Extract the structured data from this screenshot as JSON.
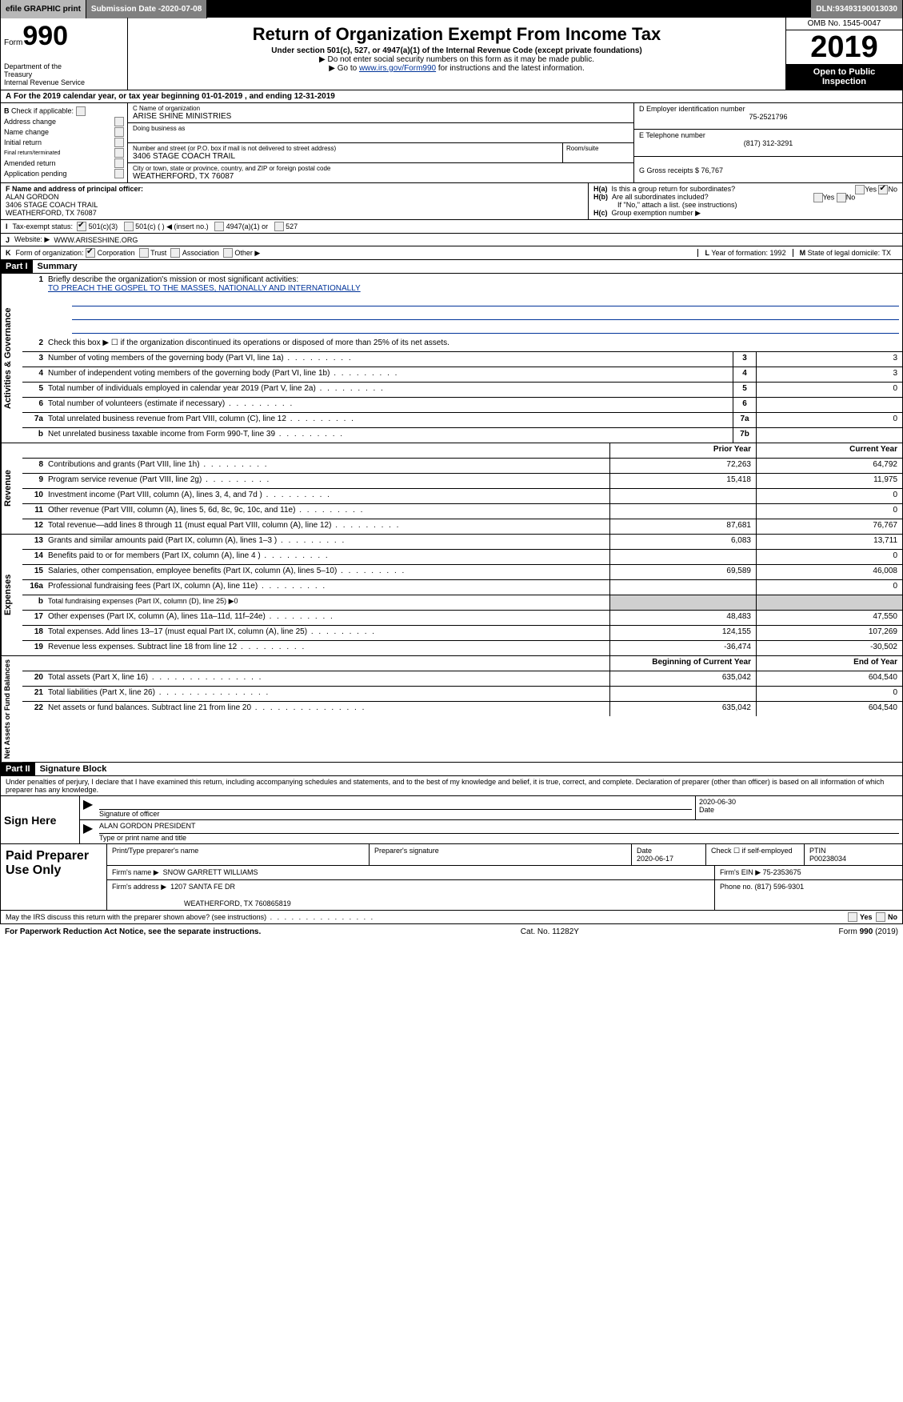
{
  "topbar": {
    "efile": "efile GRAPHIC print",
    "submission_label": "Submission Date - ",
    "submission_date": "2020-07-08",
    "dln_label": "DLN: ",
    "dln": "93493190013030"
  },
  "header": {
    "form_prefix": "Form",
    "form_number": "990",
    "dept1": "Department of the",
    "dept2": "Treasury",
    "dept3": "Internal Revenue Service",
    "title": "Return of Organization Exempt From Income Tax",
    "sub": "Under section 501(c), 527, or 4947(a)(1) of the Internal Revenue Code (except private foundations)",
    "line2_arrow": "▶ Do not enter social security numbers on this form as it may be made public.",
    "line3_pre": "▶ Go to ",
    "line3_link": "www.irs.gov/Form990",
    "line3_post": " for instructions and the latest information.",
    "omb": "OMB No. 1545-0047",
    "year": "2019",
    "open1": "Open to Public",
    "open2": "Inspection"
  },
  "lineA": {
    "a": "A",
    "text_pre": "For the 2019 calendar year, or tax year beginning ",
    "begin": "01-01-2019",
    "mid": ", and ending ",
    "end": "12-31-2019"
  },
  "colB": {
    "b": "B",
    "check_label": "Check if applicable:",
    "items": [
      "Address change",
      "Name change",
      "Initial return",
      "Final return/terminated",
      "Amended return",
      "Application pending"
    ]
  },
  "colC": {
    "name_label": "C Name of organization",
    "name": "ARISE SHINE MINISTRIES",
    "dba_label": "Doing business as",
    "dba": "",
    "street_label": "Number and street (or P.O. box if mail is not delivered to street address)",
    "street": "3406 STAGE COACH TRAIL",
    "room_label": "Room/suite",
    "city_label": "City or town, state or province, country, and ZIP or foreign postal code",
    "city": "WEATHERFORD, TX  76087"
  },
  "colD": {
    "d_label": "D Employer identification number",
    "ein": "75-2521796",
    "e_label": "E Telephone number",
    "phone": "(817) 312-3291",
    "g_label": "G Gross receipts $ ",
    "gross": "76,767"
  },
  "f": {
    "label": "F Name and address of principal officer:",
    "name": "ALAN GORDON",
    "street": "3406 STAGE COACH TRAIL",
    "city": "WEATHERFORD, TX  76087"
  },
  "h": {
    "ha": "H(a)",
    "ha_text": "Is this a group return for subordinates?",
    "hb": "H(b)",
    "hb_text": "Are all subordinates included?",
    "hb_note": "If \"No,\" attach a list. (see instructions)",
    "hc": "H(c)",
    "hc_text": "Group exemption number ▶",
    "yes": "Yes",
    "no": "No"
  },
  "i": {
    "lbl": "I",
    "text": "Tax-exempt status:",
    "opts": [
      "501(c)(3)",
      "501(c) (  ) ◀ (insert no.)",
      "4947(a)(1) or",
      "527"
    ]
  },
  "j": {
    "lbl": "J",
    "text": "Website: ▶",
    "val": "WWW.ARISESHINE.ORG"
  },
  "k": {
    "lbl": "K",
    "text": "Form of organization:",
    "opts": [
      "Corporation",
      "Trust",
      "Association",
      "Other ▶"
    ]
  },
  "l": {
    "lbl": "L",
    "text": "Year of formation: ",
    "val": "1992"
  },
  "m": {
    "lbl": "M",
    "text": "State of legal domicile: ",
    "val": "TX"
  },
  "part1": {
    "hdr": "Part I",
    "title": "Summary"
  },
  "mission": {
    "num": "1",
    "label": "Briefly describe the organization's mission or most significant activities:",
    "text": "TO PREACH THE GOSPEL TO THE MASSES, NATIONALLY AND INTERNATIONALLY"
  },
  "gov_side": "Activities & Governance",
  "rev_side": "Revenue",
  "exp_side": "Expenses",
  "net_side": "Net Assets or Fund Balances",
  "rows_gov": [
    {
      "n": "2",
      "d": "Check this box ▶ ☐ if the organization discontinued its operations or disposed of more than 25% of its net assets."
    },
    {
      "n": "3",
      "d": "Number of voting members of the governing body (Part VI, line 1a)",
      "box": "3",
      "v": "3"
    },
    {
      "n": "4",
      "d": "Number of independent voting members of the governing body (Part VI, line 1b)",
      "box": "4",
      "v": "3"
    },
    {
      "n": "5",
      "d": "Total number of individuals employed in calendar year 2019 (Part V, line 2a)",
      "box": "5",
      "v": "0"
    },
    {
      "n": "6",
      "d": "Total number of volunteers (estimate if necessary)",
      "box": "6",
      "v": ""
    },
    {
      "n": "7a",
      "d": "Total unrelated business revenue from Part VIII, column (C), line 12",
      "box": "7a",
      "v": "0"
    },
    {
      "n": "b",
      "d": "Net unrelated business taxable income from Form 990-T, line 39",
      "box": "7b",
      "v": ""
    }
  ],
  "col_prior": "Prior Year",
  "col_current": "Current Year",
  "rows_rev": [
    {
      "n": "8",
      "d": "Contributions and grants (Part VIII, line 1h)",
      "p": "72,263",
      "c": "64,792"
    },
    {
      "n": "9",
      "d": "Program service revenue (Part VIII, line 2g)",
      "p": "15,418",
      "c": "11,975"
    },
    {
      "n": "10",
      "d": "Investment income (Part VIII, column (A), lines 3, 4, and 7d )",
      "p": "",
      "c": "0"
    },
    {
      "n": "11",
      "d": "Other revenue (Part VIII, column (A), lines 5, 6d, 8c, 9c, 10c, and 11e)",
      "p": "",
      "c": "0"
    },
    {
      "n": "12",
      "d": "Total revenue—add lines 8 through 11 (must equal Part VIII, column (A), line 12)",
      "p": "87,681",
      "c": "76,767"
    }
  ],
  "rows_exp": [
    {
      "n": "13",
      "d": "Grants and similar amounts paid (Part IX, column (A), lines 1–3 )",
      "p": "6,083",
      "c": "13,711"
    },
    {
      "n": "14",
      "d": "Benefits paid to or for members (Part IX, column (A), line 4 )",
      "p": "",
      "c": "0"
    },
    {
      "n": "15",
      "d": "Salaries, other compensation, employee benefits (Part IX, column (A), lines 5–10)",
      "p": "69,589",
      "c": "46,008"
    },
    {
      "n": "16a",
      "d": "Professional fundraising fees (Part IX, column (A), line 11e)",
      "p": "",
      "c": "0"
    },
    {
      "n": "b",
      "d": "Total fundraising expenses (Part IX, column (D), line 25) ▶0",
      "shaded": true
    },
    {
      "n": "17",
      "d": "Other expenses (Part IX, column (A), lines 11a–11d, 11f–24e)",
      "p": "48,483",
      "c": "47,550"
    },
    {
      "n": "18",
      "d": "Total expenses. Add lines 13–17 (must equal Part IX, column (A), line 25)",
      "p": "124,155",
      "c": "107,269"
    },
    {
      "n": "19",
      "d": "Revenue less expenses. Subtract line 18 from line 12",
      "p": "-36,474",
      "c": "-30,502"
    }
  ],
  "col_begin": "Beginning of Current Year",
  "col_end": "End of Year",
  "rows_net": [
    {
      "n": "20",
      "d": "Total assets (Part X, line 16)",
      "p": "635,042",
      "c": "604,540"
    },
    {
      "n": "21",
      "d": "Total liabilities (Part X, line 26)",
      "p": "",
      "c": "0"
    },
    {
      "n": "22",
      "d": "Net assets or fund balances. Subtract line 21 from line 20",
      "p": "635,042",
      "c": "604,540"
    }
  ],
  "part2": {
    "hdr": "Part II",
    "title": "Signature Block"
  },
  "perjury": "Under penalties of perjury, I declare that I have examined this return, including accompanying schedules and statements, and to the best of my knowledge and belief, it is true, correct, and complete. Declaration of preparer (other than officer) is based on all information of which preparer has any knowledge.",
  "sign": {
    "here": "Sign Here",
    "sig_label": "Signature of officer",
    "date_label": "Date",
    "date": "2020-06-30",
    "name": "ALAN GORDON  PRESIDENT",
    "name_label": "Type or print name and title"
  },
  "prep": {
    "label": "Paid Preparer Use Only",
    "col1": "Print/Type preparer's name",
    "col2": "Preparer's signature",
    "col3": "Date",
    "date": "2020-06-17",
    "col4_pre": "Check ☐ if self-employed",
    "col5": "PTIN",
    "ptin": "P00238034",
    "firm_label": "Firm's name   ▶",
    "firm": "SNOW GARRETT WILLIAMS",
    "ein_label": "Firm's EIN ▶ ",
    "ein": "75-2353675",
    "addr_label": "Firm's address ▶",
    "addr1": "1207 SANTA FE DR",
    "addr2": "WEATHERFORD, TX  760865819",
    "phone_label": "Phone no. ",
    "phone": "(817) 596-9301"
  },
  "discuss": {
    "text": "May the IRS discuss this return with the preparer shown above? (see instructions)",
    "yes": "Yes",
    "no": "No"
  },
  "footer": {
    "left": "For Paperwork Reduction Act Notice, see the separate instructions.",
    "mid": "Cat. No. 11282Y",
    "right_pre": "Form ",
    "right_form": "990",
    "right_post": " (2019)"
  }
}
